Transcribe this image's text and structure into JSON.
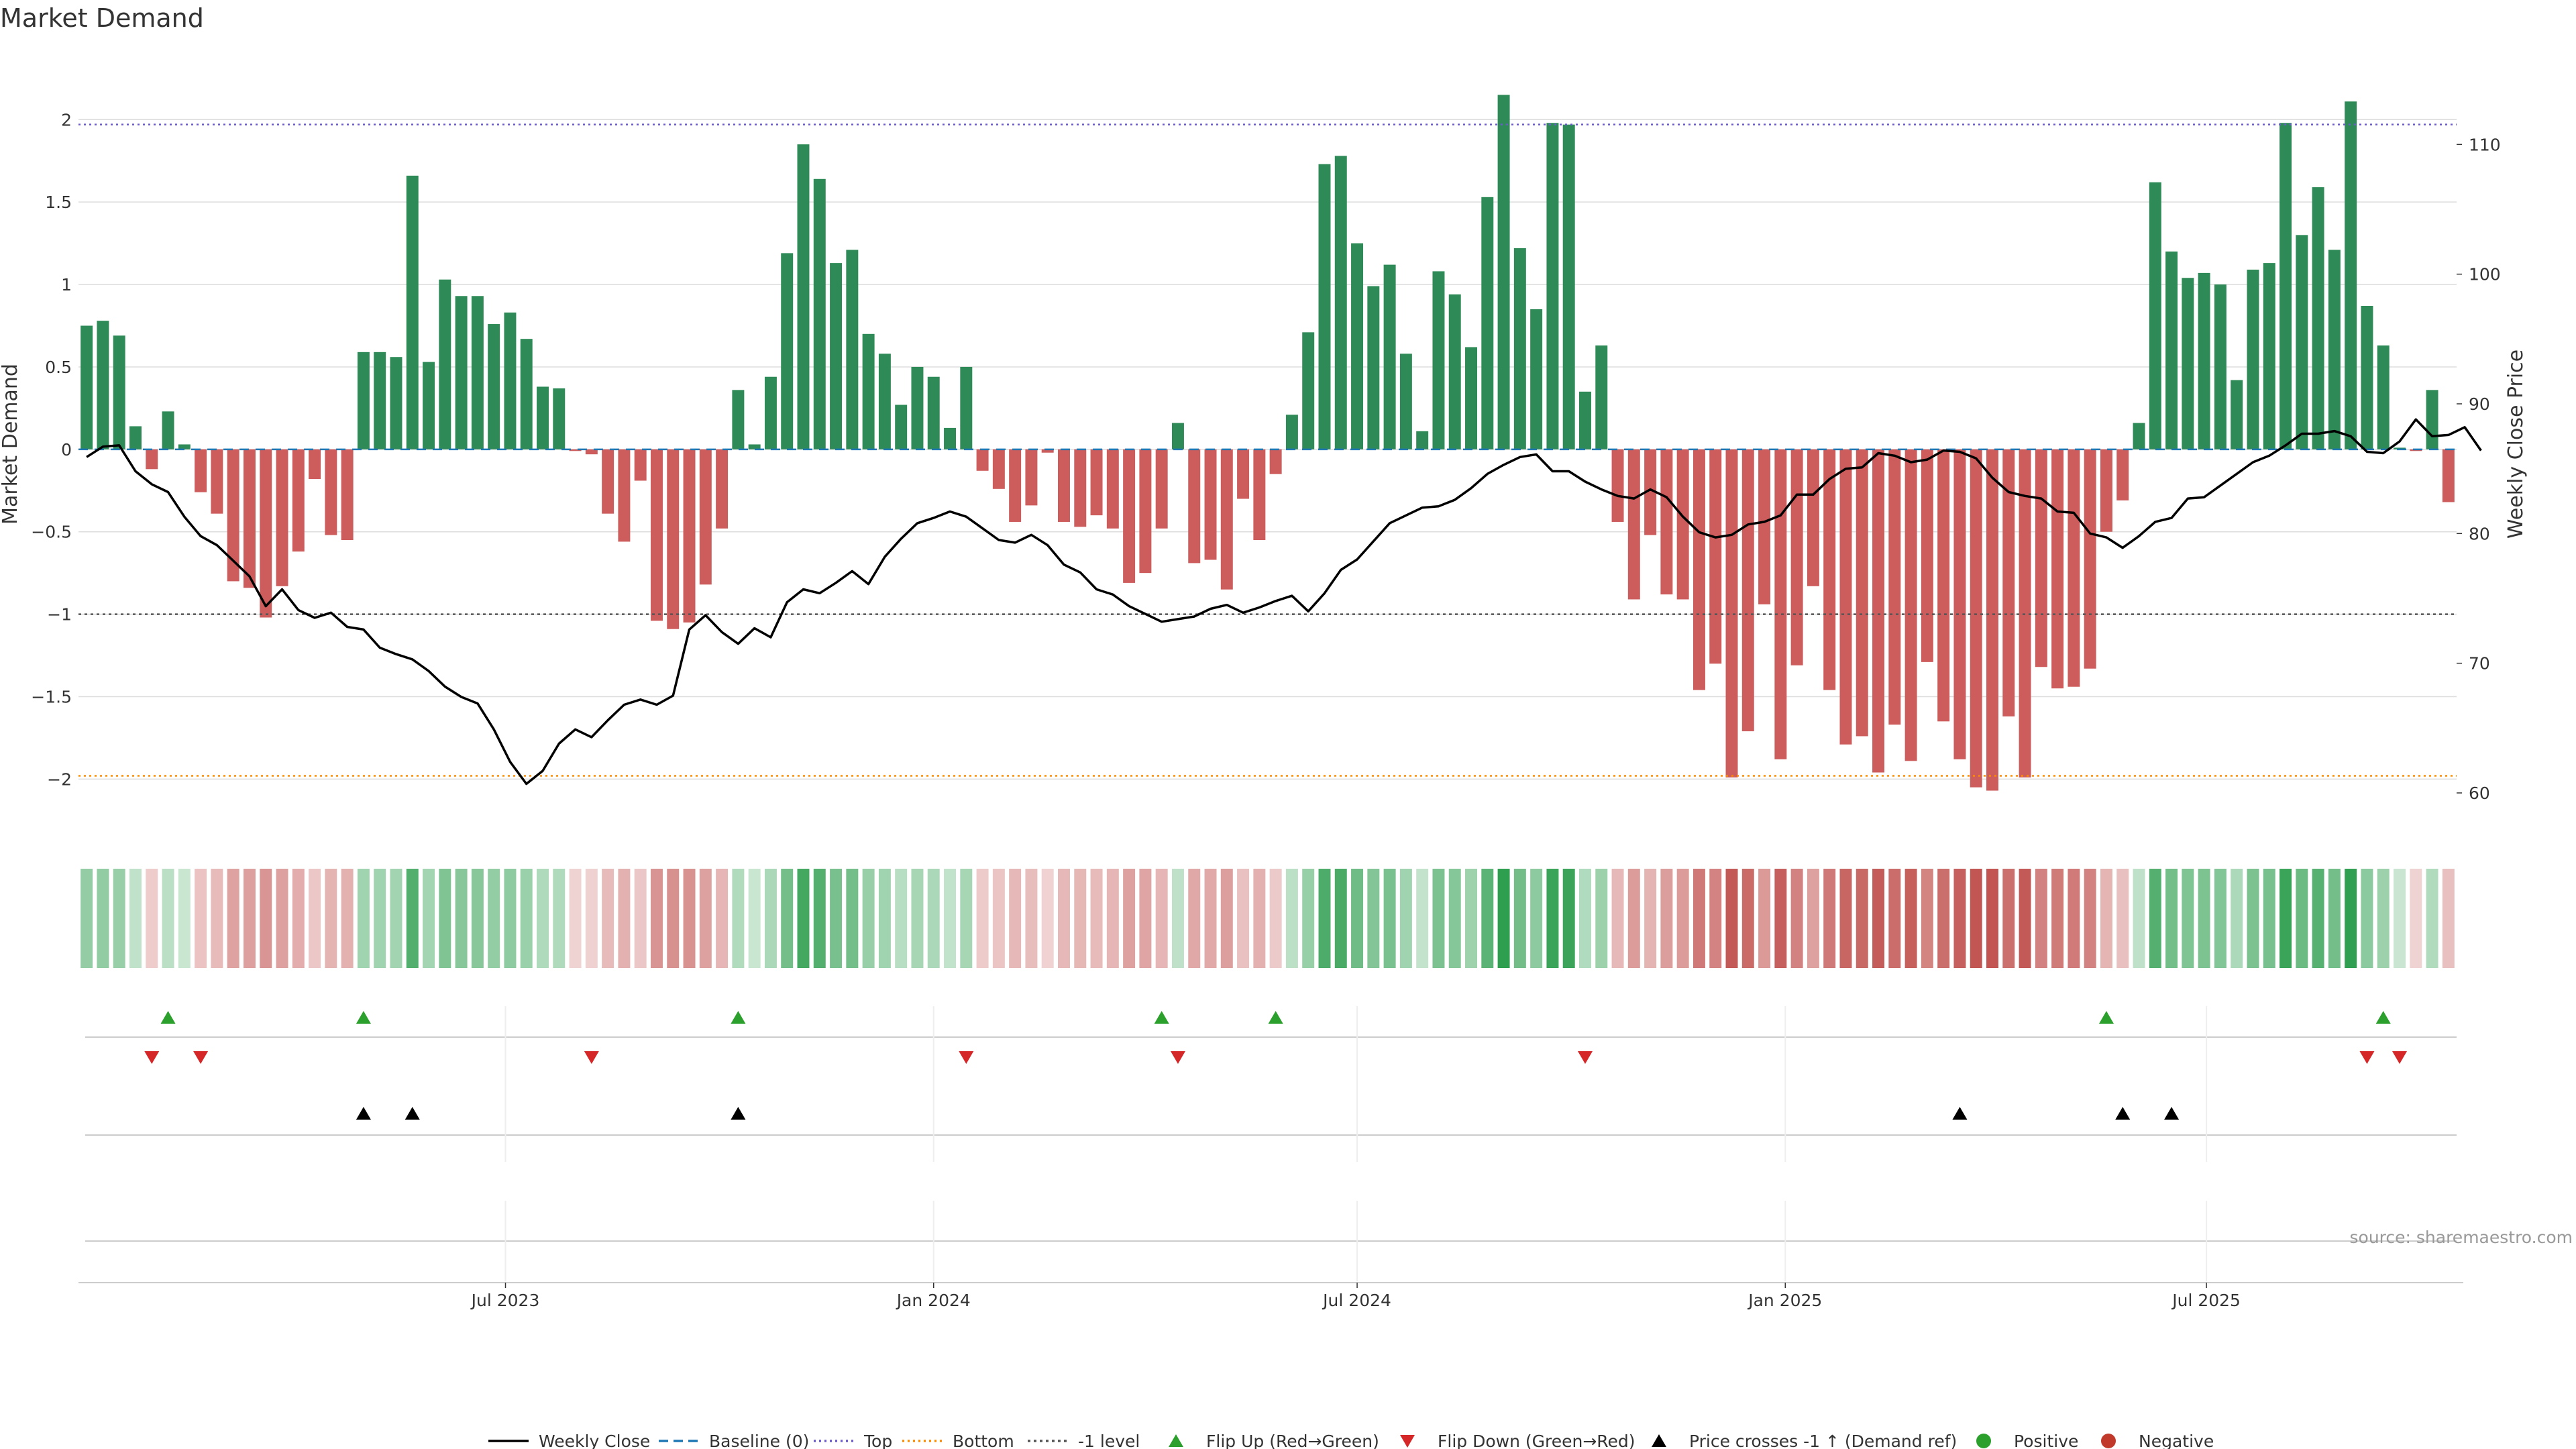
{
  "chart_data": {
    "type": "bar",
    "title": "Market Demand",
    "ylabel": "Market Demand",
    "y2label": "Weekly Close Price",
    "ylim": [
      -2.32,
      2.4
    ],
    "y2lim": [
      57,
      117
    ],
    "yticks": [
      -2,
      -1.5,
      -1,
      -0.5,
      0,
      0.5,
      1,
      1.5,
      2
    ],
    "y2ticks": [
      60,
      70,
      80,
      90,
      100,
      110
    ],
    "reference_lines": {
      "top": 1.97,
      "bottom": -1.98,
      "minus_one": -1
    },
    "start_date": "2023-01-02",
    "x_ticks": [
      {
        "date": "2023-07-01",
        "label": "Jul 2023"
      },
      {
        "date": "2024-01-01",
        "label": "Jan 2024"
      },
      {
        "date": "2024-07-01",
        "label": "Jul 2024"
      },
      {
        "date": "2025-01-01",
        "label": "Jan 2025"
      },
      {
        "date": "2025-07-01",
        "label": "Jul 2025"
      }
    ],
    "demand": [
      0.75,
      0.78,
      0.69,
      0.14,
      -0.12,
      0.23,
      0.03,
      -0.26,
      -0.39,
      -0.8,
      -0.84,
      -1.02,
      -0.83,
      -0.62,
      -0.18,
      -0.52,
      -0.55,
      0.59,
      0.59,
      0.56,
      1.66,
      0.53,
      1.03,
      0.93,
      0.93,
      0.76,
      0.83,
      0.67,
      0.38,
      0.37,
      -0.01,
      -0.03,
      -0.39,
      -0.56,
      -0.19,
      -1.04,
      -1.09,
      -1.05,
      -0.82,
      -0.48,
      0.36,
      0.03,
      0.44,
      1.19,
      1.85,
      1.64,
      1.13,
      1.21,
      0.7,
      0.58,
      0.27,
      0.5,
      0.44,
      0.13,
      0.5,
      -0.13,
      -0.24,
      -0.44,
      -0.34,
      -0.02,
      -0.44,
      -0.47,
      -0.4,
      -0.48,
      -0.81,
      -0.75,
      -0.48,
      0.16,
      -0.69,
      -0.67,
      -0.85,
      -0.3,
      -0.55,
      -0.15,
      0.21,
      0.71,
      1.73,
      1.78,
      1.25,
      0.99,
      1.12,
      0.58,
      0.11,
      1.08,
      0.94,
      0.62,
      1.53,
      2.15,
      1.22,
      0.85,
      1.98,
      1.97,
      0.35,
      0.63,
      -0.44,
      -0.91,
      -0.52,
      -0.88,
      -0.91,
      -1.46,
      -1.3,
      -1.99,
      -1.71,
      -0.94,
      -1.88,
      -1.31,
      -0.83,
      -1.46,
      -1.79,
      -1.74,
      -1.96,
      -1.67,
      -1.89,
      -1.29,
      -1.65,
      -1.88,
      -2.05,
      -2.07,
      -1.62,
      -1.99,
      -1.32,
      -1.45,
      -1.44,
      -1.33,
      -0.5,
      -0.31,
      0.16,
      1.62,
      1.2,
      1.04,
      1.07,
      1.0,
      0.42,
      1.09,
      1.13,
      1.98,
      1.3,
      1.59,
      1.21,
      2.11,
      0.87,
      0.63,
      0.01,
      -0.01,
      0.36,
      -0.32
    ],
    "weekly_close": [
      85.9,
      86.7,
      86.8,
      84.8,
      83.8,
      83.2,
      81.3,
      79.8,
      79.1,
      77.9,
      76.7,
      74.4,
      75.7,
      74.1,
      73.5,
      73.9,
      72.8,
      72.6,
      71.2,
      70.7,
      70.3,
      69.4,
      68.2,
      67.4,
      66.9,
      64.9,
      62.4,
      60.7,
      61.7,
      63.8,
      64.9,
      64.3,
      65.6,
      66.8,
      67.2,
      66.8,
      67.5,
      72.6,
      73.7,
      72.4,
      71.5,
      72.7,
      72.0,
      74.7,
      75.7,
      75.4,
      76.2,
      77.1,
      76.1,
      78.2,
      79.6,
      80.8,
      81.2,
      81.7,
      81.3,
      80.4,
      79.5,
      79.3,
      79.9,
      79.1,
      77.6,
      77.0,
      75.7,
      75.3,
      74.4,
      73.8,
      73.2,
      73.4,
      73.6,
      74.2,
      74.5,
      73.9,
      74.3,
      74.8,
      75.2,
      74.0,
      75.4,
      77.2,
      78.0,
      79.4,
      80.8,
      81.4,
      82.0,
      82.1,
      82.6,
      83.5,
      84.6,
      85.3,
      85.9,
      86.1,
      84.8,
      84.8,
      84.0,
      83.4,
      82.9,
      82.7,
      83.4,
      82.8,
      81.3,
      80.1,
      79.7,
      79.9,
      80.7,
      80.9,
      81.4,
      83.0,
      83.0,
      84.2,
      85.0,
      85.1,
      86.2,
      86.0,
      85.5,
      85.7,
      86.4,
      86.3,
      85.8,
      84.3,
      83.2,
      82.9,
      82.7,
      81.7,
      81.6,
      80.0,
      79.7,
      78.9,
      79.8,
      80.9,
      81.2,
      82.7,
      82.8,
      83.7,
      84.6,
      85.5,
      86.0,
      86.8,
      87.7,
      87.7,
      87.9,
      87.5,
      86.3,
      86.2,
      87.1,
      88.8,
      87.5,
      87.6,
      88.2,
      86.4
    ],
    "flip_up": [
      5,
      17,
      40,
      66,
      73,
      124,
      141
    ],
    "flip_down": [
      4,
      7,
      31,
      54,
      67,
      92,
      140,
      142
    ],
    "price_cross": [
      17,
      20,
      40,
      115,
      125,
      128
    ],
    "legend": [
      "Weekly Close",
      "Baseline (0)",
      "Top",
      "Bottom",
      "-1 level",
      "Flip Up (Red→Green)",
      "Flip Down (Green→Red)",
      "Price crosses -1 ↑ (Demand ref)",
      "Positive",
      "Negative"
    ],
    "source": "source: sharemaestro.com"
  },
  "colors": {
    "positive": "#2e8b57",
    "negative": "#cd5c5c",
    "line": "#000000",
    "flip_up": "#2ca02c",
    "flip_down": "#d62728",
    "cross": "#000000",
    "top": "#6a5acd",
    "bottom": "#ff8c00",
    "minus_one": "#555555",
    "baseline": "#1f77b4",
    "grid": "#dddddd",
    "positive_dot": "#2ca02c",
    "negative_dot": "#c0392b"
  }
}
